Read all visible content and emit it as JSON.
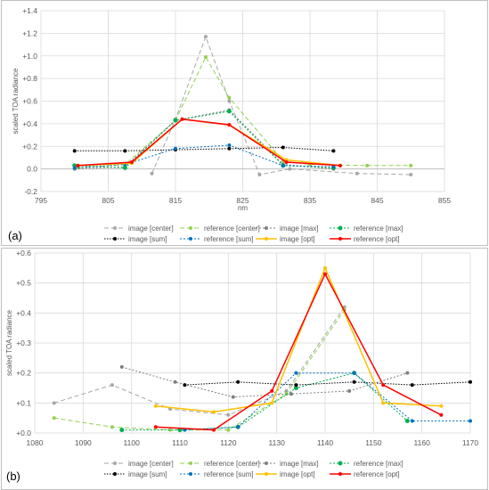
{
  "chart_data": [
    {
      "panel_label": "(a)",
      "type": "line",
      "xlabel": "nm",
      "ylabel": "scaled TOA radiance",
      "xlim": [
        795,
        855
      ],
      "ylim": [
        -0.2,
        1.4
      ],
      "xticks": [
        "795",
        "805",
        "815",
        "825",
        "835",
        "845",
        "855"
      ],
      "yticks": [
        "-0.2",
        "0.0",
        "+0.2",
        "+0.4",
        "+0.6",
        "+0.8",
        "+1.0",
        "+1.2",
        "+1.4"
      ],
      "legend_position": "bottom",
      "series": [
        {
          "name": "image [center]",
          "color": "#a6a6a6",
          "dash": "5,3",
          "width": 1,
          "marker": 2,
          "points": [
            [
              811.5,
              -0.04
            ],
            [
              815,
              0.44
            ],
            [
              819.5,
              1.17
            ],
            [
              823,
              0.6
            ],
            [
              827.5,
              -0.05
            ],
            [
              832,
              0.0
            ],
            [
              842,
              -0.04
            ],
            [
              850,
              -0.05
            ]
          ]
        },
        {
          "name": "reference [center]",
          "color": "#92d050",
          "dash": "5,3",
          "width": 1,
          "marker": 2,
          "points": [
            [
              800.5,
              0.01
            ],
            [
              807.5,
              0.04
            ],
            [
              815,
              0.43
            ],
            [
              819.5,
              0.99
            ],
            [
              823,
              0.63
            ],
            [
              831,
              0.07
            ],
            [
              835,
              0.04
            ],
            [
              843.5,
              0.03
            ],
            [
              850,
              0.03
            ]
          ]
        },
        {
          "name": "image [max]",
          "color": "#7f7f7f",
          "dash": "2,2",
          "width": 1,
          "marker": 2,
          "points": [
            [
              800,
              0.0
            ],
            [
              807.5,
              0.02
            ],
            [
              815,
              0.43
            ],
            [
              823,
              0.52
            ],
            [
              831,
              0.04
            ],
            [
              838.5,
              0.0
            ]
          ]
        },
        {
          "name": "reference [max]",
          "color": "#00b050",
          "dash": "2,2",
          "width": 1,
          "marker": 2.5,
          "points": [
            [
              800,
              0.03
            ],
            [
              807.5,
              0.01
            ],
            [
              815,
              0.43
            ],
            [
              823,
              0.51
            ],
            [
              831,
              0.03
            ],
            [
              838.5,
              0.01
            ]
          ]
        },
        {
          "name": "image [sum]",
          "color": "#000000",
          "dash": "1.5,1.5",
          "width": 1,
          "marker": 2,
          "points": [
            [
              800,
              0.16
            ],
            [
              807.5,
              0.16
            ],
            [
              815,
              0.17
            ],
            [
              823,
              0.18
            ],
            [
              831,
              0.19
            ],
            [
              838.5,
              0.16
            ]
          ]
        },
        {
          "name": "reference [sum]",
          "color": "#0070c0",
          "dash": "2,2",
          "width": 1,
          "marker": 2,
          "points": [
            [
              800,
              0.01
            ],
            [
              807.5,
              0.04
            ],
            [
              815,
              0.18
            ],
            [
              823,
              0.21
            ],
            [
              831,
              0.03
            ],
            [
              838.5,
              0.02
            ]
          ]
        },
        {
          "name": "image [opt]",
          "color": "#ffc000",
          "dash": "",
          "width": 1.5,
          "marker": 2,
          "points": [
            [
              800.5,
              0.03
            ],
            [
              808.5,
              0.05
            ],
            [
              816,
              0.44
            ],
            [
              823,
              0.39
            ],
            [
              831.5,
              0.08
            ],
            [
              839.5,
              0.03
            ]
          ]
        },
        {
          "name": "reference [opt]",
          "color": "#ff0000",
          "dash": "",
          "width": 1.5,
          "marker": 2,
          "points": [
            [
              800.5,
              0.03
            ],
            [
              808.5,
              0.06
            ],
            [
              816,
              0.44
            ],
            [
              823,
              0.39
            ],
            [
              831.5,
              0.06
            ],
            [
              839.5,
              0.03
            ]
          ]
        }
      ]
    },
    {
      "panel_label": "(b)",
      "type": "line",
      "xlabel": "",
      "ylabel": "scaled TOA radiance",
      "xlim": [
        1080,
        1170
      ],
      "ylim": [
        0.0,
        0.6
      ],
      "xticks": [
        "1080",
        "1090",
        "1100",
        "1110",
        "1120",
        "1130",
        "1140",
        "1150",
        "1160",
        "1170"
      ],
      "yticks": [
        "+0.0",
        "+0.1",
        "+0.2",
        "+0.3",
        "+0.4",
        "+0.5",
        "+0.6"
      ],
      "legend_position": "bottom",
      "series": [
        {
          "name": "image [center]",
          "color": "#a6a6a6",
          "dash": "5,3",
          "width": 1,
          "marker": 2,
          "points": [
            [
              1084,
              0.1
            ],
            [
              1096,
              0.16
            ],
            [
              1108,
              0.08
            ],
            [
              1120,
              0.06
            ],
            [
              1132,
              0.14
            ],
            [
              1144,
              0.42
            ]
          ]
        },
        {
          "name": "reference [center]",
          "color": "#92d050",
          "dash": "5,3",
          "width": 1,
          "marker": 2,
          "points": [
            [
              1084,
              0.05
            ],
            [
              1096,
              0.02
            ],
            [
              1108,
              0.01
            ],
            [
              1120,
              0.01
            ],
            [
              1132,
              0.13
            ],
            [
              1144,
              0.41
            ]
          ]
        },
        {
          "name": "image [max]",
          "color": "#7f7f7f",
          "dash": "2,2",
          "width": 1,
          "marker": 2,
          "points": [
            [
              1098,
              0.22
            ],
            [
              1109,
              0.17
            ],
            [
              1121,
              0.12
            ],
            [
              1133,
              0.13
            ],
            [
              1145,
              0.14
            ],
            [
              1157,
              0.2
            ]
          ]
        },
        {
          "name": "reference [max]",
          "color": "#00b050",
          "dash": "2,2",
          "width": 1,
          "marker": 2.5,
          "points": [
            [
              1098,
              0.01
            ],
            [
              1110,
              0.01
            ],
            [
              1122,
              0.02
            ],
            [
              1134,
              0.15
            ],
            [
              1146,
              0.2
            ],
            [
              1157,
              0.04
            ]
          ]
        },
        {
          "name": "image [sum]",
          "color": "#000000",
          "dash": "1.5,1.5",
          "width": 1,
          "marker": 2,
          "points": [
            [
              1111,
              0.16
            ],
            [
              1122,
              0.17
            ],
            [
              1134,
              0.16
            ],
            [
              1146,
              0.17
            ],
            [
              1158,
              0.16
            ],
            [
              1170,
              0.17
            ]
          ]
        },
        {
          "name": "reference [sum]",
          "color": "#0070c0",
          "dash": "2,2",
          "width": 1,
          "marker": 2,
          "points": [
            [
              1111,
              0.01
            ],
            [
              1122,
              0.02
            ],
            [
              1134,
              0.2
            ],
            [
              1146,
              0.2
            ],
            [
              1158,
              0.04
            ],
            [
              1170,
              0.04
            ]
          ]
        },
        {
          "name": "image [opt]",
          "color": "#ffc000",
          "dash": "",
          "width": 1.5,
          "marker": 2,
          "points": [
            [
              1105,
              0.09
            ],
            [
              1117,
              0.07
            ],
            [
              1129,
              0.1
            ],
            [
              1140,
              0.55
            ],
            [
              1152,
              0.1
            ],
            [
              1164,
              0.09
            ]
          ]
        },
        {
          "name": "reference [opt]",
          "color": "#ff0000",
          "dash": "",
          "width": 1.5,
          "marker": 2,
          "points": [
            [
              1105,
              0.02
            ],
            [
              1117,
              0.01
            ],
            [
              1129,
              0.14
            ],
            [
              1140,
              0.53
            ],
            [
              1152,
              0.16
            ],
            [
              1164,
              0.06
            ]
          ]
        }
      ]
    }
  ]
}
